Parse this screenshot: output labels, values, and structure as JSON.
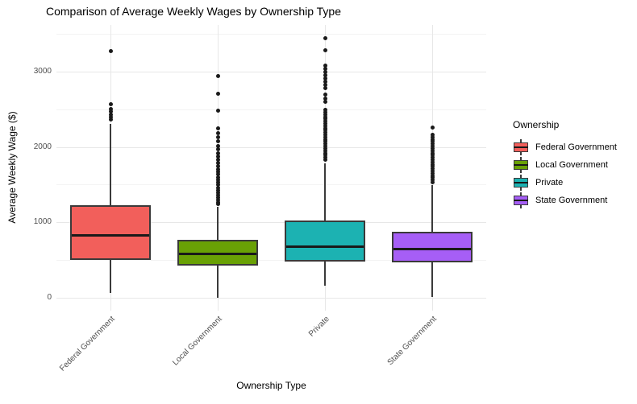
{
  "title": "Comparison of Average Weekly Wages by Ownership Type",
  "chart_data": {
    "type": "boxplot",
    "title": "Comparison of Average Weekly Wages by Ownership Type",
    "xlabel": "Ownership Type",
    "ylabel": "Average Weekly Wage ($)",
    "legend_title": "Ownership",
    "legend_position": "right",
    "grid": "on",
    "ylim": [
      -170,
      3620
    ],
    "yticks": [
      0,
      1000,
      2000,
      3000
    ],
    "yminor": [
      500,
      1500,
      2500,
      3500
    ],
    "categories": [
      "Federal Government",
      "Local Government",
      "Private",
      "State Government"
    ],
    "series": [
      {
        "name": "Federal Government",
        "color": "#f25f5b",
        "whisker_low": 60,
        "q1": 500,
        "median": 845,
        "q3": 1230,
        "whisker_high": 2305,
        "outliers": [
          2360,
          2395,
          2430,
          2465,
          2500,
          2570,
          3270
        ]
      },
      {
        "name": "Local Government",
        "color": "#69a105",
        "whisker_low": 5,
        "q1": 430,
        "median": 600,
        "q3": 770,
        "whisker_high": 1210,
        "outliers": [
          1240,
          1265,
          1295,
          1325,
          1355,
          1390,
          1425,
          1460,
          1495,
          1530,
          1565,
          1600,
          1635,
          1670,
          1705,
          1745,
          1785,
          1825,
          1870,
          1915,
          1965,
          2015,
          2070,
          2125,
          2185,
          2245,
          2480,
          2700,
          2935
        ]
      },
      {
        "name": "Private",
        "color": "#1cb2b2",
        "whisker_low": 160,
        "q1": 480,
        "median": 695,
        "q3": 1025,
        "whisker_high": 1785,
        "outliers": [
          1830,
          1860,
          1890,
          1920,
          1950,
          1980,
          2010,
          2040,
          2070,
          2100,
          2130,
          2160,
          2190,
          2220,
          2250,
          2280,
          2310,
          2340,
          2370,
          2400,
          2430,
          2460,
          2490,
          2600,
          2645,
          2690,
          2775,
          2820,
          2865,
          2910,
          2950,
          2990,
          3035,
          3075,
          3275,
          3445
        ]
      },
      {
        "name": "State Government",
        "color": "#a65ef6",
        "whisker_low": 15,
        "q1": 470,
        "median": 670,
        "q3": 870,
        "whisker_high": 1495,
        "outliers": [
          1530,
          1560,
          1590,
          1620,
          1650,
          1680,
          1710,
          1740,
          1770,
          1800,
          1830,
          1860,
          1890,
          1920,
          1950,
          1980,
          2010,
          2040,
          2070,
          2100,
          2130,
          2160,
          2260
        ]
      }
    ]
  },
  "colors": {
    "box_border": "#3a3a3a",
    "median_line": "#191919",
    "outlier_dot": "#1a1a1a",
    "grid_major": "#e7e7e7",
    "grid_minor": "#f3f3f3",
    "tick_text": "#4d4d4d"
  }
}
